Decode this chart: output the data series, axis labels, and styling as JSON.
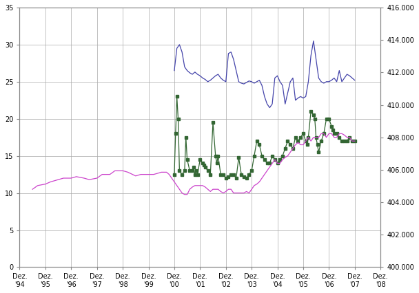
{
  "title": "",
  "xlim_start": 0,
  "xlim_end": 14,
  "ylim_left": [
    0,
    35
  ],
  "ylim_right": [
    400000,
    416000
  ],
  "x_tick_labels": [
    "Dez.\n'94",
    "Dez.\n'95",
    "Dez.\n'96",
    "Dez.\n'97",
    "Dez.\n'98",
    "Dez.\n'99",
    "Dez.\n'00",
    "Dez.\n'01",
    "Dez.\n'02",
    "Dez.\n'03",
    "Dez.\n'04",
    "Dez.\n'05",
    "Dez.\n'06",
    "Dez.\n'07",
    "Dez.\n'08"
  ],
  "y_left_ticks": [
    0,
    5,
    10,
    15,
    20,
    25,
    30,
    35
  ],
  "y_right_ticks": [
    400000,
    402000,
    404000,
    406000,
    408000,
    410000,
    412000,
    414000,
    416000
  ],
  "y_right_labels": [
    "400.000",
    "402.000",
    "404.000",
    "406.000",
    "408.000",
    "410.000",
    "412.000",
    "414.000",
    "416.000"
  ],
  "background_color": "#ffffff",
  "grid_color": "#aaaaaa",
  "colors": {
    "blue": "#4444aa",
    "green": "#336633",
    "magenta": "#cc44cc"
  },
  "blue_line": {
    "x": [
      6.0,
      6.1,
      6.2,
      6.3,
      6.35,
      6.4,
      6.5,
      6.6,
      6.7,
      6.8,
      6.9,
      7.0,
      7.1,
      7.2,
      7.3,
      7.4,
      7.5,
      7.6,
      7.7,
      7.8,
      7.9,
      8.0,
      8.1,
      8.2,
      8.3,
      8.4,
      8.5,
      8.6,
      8.7,
      8.8,
      8.9,
      9.0,
      9.1,
      9.2,
      9.3,
      9.4,
      9.5,
      9.6,
      9.7,
      9.8,
      9.9,
      10.0,
      10.1,
      10.2,
      10.3,
      10.4,
      10.5,
      10.6,
      10.7,
      10.8,
      10.9,
      11.0,
      11.1,
      11.2,
      11.3,
      11.4,
      11.5,
      11.6,
      11.7,
      11.8,
      11.9,
      12.0,
      12.1,
      12.2,
      12.3,
      12.4,
      12.5,
      12.6,
      12.7,
      12.8,
      12.9,
      13.0
    ],
    "y": [
      26.5,
      29.5,
      30.0,
      29.0,
      28.0,
      27.0,
      26.5,
      26.2,
      26.0,
      26.3,
      26.0,
      25.8,
      25.5,
      25.3,
      25.0,
      25.2,
      25.5,
      25.8,
      26.0,
      25.5,
      25.2,
      25.0,
      28.8,
      29.0,
      28.0,
      26.5,
      25.0,
      24.8,
      24.7,
      24.9,
      25.1,
      25.0,
      24.8,
      25.0,
      25.2,
      24.5,
      23.0,
      22.0,
      21.5,
      22.0,
      25.5,
      25.8,
      25.0,
      24.5,
      22.0,
      23.5,
      25.0,
      25.5,
      22.5,
      22.8,
      23.0,
      22.8,
      23.0,
      25.0,
      28.5,
      30.5,
      28.0,
      25.5,
      25.0,
      24.8,
      25.0,
      25.0,
      25.2,
      25.5,
      25.0,
      26.5,
      25.0,
      25.5,
      26.0,
      25.8,
      25.5,
      25.2
    ]
  },
  "green_line": {
    "x": [
      6.0,
      6.05,
      6.1,
      6.15,
      6.2,
      6.3,
      6.4,
      6.45,
      6.5,
      6.6,
      6.7,
      6.75,
      6.8,
      6.85,
      6.9,
      7.0,
      7.1,
      7.15,
      7.2,
      7.3,
      7.4,
      7.5,
      7.6,
      7.65,
      7.7,
      7.8,
      7.9,
      8.0,
      8.1,
      8.2,
      8.3,
      8.4,
      8.5,
      8.6,
      8.7,
      8.8,
      8.9,
      9.0,
      9.1,
      9.2,
      9.3,
      9.4,
      9.5,
      9.6,
      9.7,
      9.8,
      9.9,
      10.0,
      10.1,
      10.2,
      10.3,
      10.4,
      10.5,
      10.6,
      10.7,
      10.8,
      10.9,
      11.0,
      11.1,
      11.15,
      11.2,
      11.3,
      11.4,
      11.45,
      11.5,
      11.55,
      11.6,
      11.7,
      11.8,
      11.9,
      12.0,
      12.1,
      12.15,
      12.2,
      12.3,
      12.4,
      12.5,
      12.6,
      12.7,
      12.8,
      12.9,
      13.0
    ],
    "y": [
      12.5,
      18.0,
      23.0,
      20.0,
      13.0,
      12.5,
      13.0,
      17.5,
      14.5,
      13.0,
      13.0,
      13.5,
      12.5,
      13.0,
      12.5,
      14.5,
      14.0,
      13.8,
      13.5,
      13.0,
      12.5,
      19.5,
      15.0,
      14.0,
      15.0,
      12.5,
      12.5,
      12.0,
      12.2,
      12.5,
      12.5,
      12.0,
      14.8,
      12.5,
      12.2,
      12.0,
      12.5,
      13.0,
      15.0,
      17.0,
      16.5,
      15.0,
      14.5,
      14.0,
      14.0,
      15.0,
      14.5,
      14.0,
      14.5,
      15.0,
      16.0,
      17.0,
      16.5,
      16.0,
      17.5,
      17.0,
      17.5,
      18.0,
      17.0,
      16.5,
      17.5,
      21.0,
      20.5,
      20.0,
      17.5,
      16.5,
      15.5,
      17.0,
      18.0,
      20.0,
      20.0,
      19.0,
      18.5,
      18.0,
      18.0,
      17.5,
      17.0,
      17.0,
      17.0,
      17.5,
      17.0,
      17.0
    ]
  },
  "magenta_line": {
    "x": [
      0.5,
      0.7,
      1.0,
      1.2,
      1.5,
      1.7,
      2.0,
      2.2,
      2.5,
      2.7,
      3.0,
      3.2,
      3.5,
      3.7,
      4.0,
      4.2,
      4.5,
      4.7,
      5.0,
      5.2,
      5.5,
      5.7,
      5.8,
      5.9,
      6.0,
      6.1,
      6.2,
      6.3,
      6.4,
      6.5,
      6.6,
      6.7,
      6.8,
      6.9,
      7.0,
      7.1,
      7.2,
      7.3,
      7.4,
      7.5,
      7.6,
      7.7,
      7.8,
      7.9,
      8.0,
      8.1,
      8.2,
      8.3,
      8.4,
      8.5,
      8.6,
      8.7,
      8.8,
      8.9,
      9.0,
      9.1,
      9.2,
      9.3,
      9.4,
      9.5,
      9.6,
      9.7,
      9.8,
      9.9,
      10.0,
      10.1,
      10.2,
      10.3,
      10.4,
      10.5,
      10.6,
      10.7,
      10.8,
      10.9,
      11.0,
      11.1,
      11.2,
      11.3,
      11.4,
      11.5,
      11.6,
      11.7,
      11.8,
      11.9,
      12.0,
      12.1,
      12.2,
      12.3,
      12.4,
      12.5,
      12.6,
      12.7,
      12.8,
      12.9,
      13.0
    ],
    "y": [
      10.5,
      11.0,
      11.2,
      11.5,
      11.8,
      12.0,
      12.0,
      12.2,
      12.0,
      11.8,
      12.0,
      12.5,
      12.5,
      13.0,
      13.0,
      12.8,
      12.3,
      12.5,
      12.5,
      12.5,
      12.8,
      12.8,
      12.5,
      12.0,
      11.5,
      11.0,
      10.5,
      10.0,
      9.8,
      9.8,
      10.5,
      10.8,
      11.0,
      11.0,
      11.0,
      11.0,
      10.8,
      10.5,
      10.2,
      10.5,
      10.5,
      10.5,
      10.2,
      10.0,
      10.2,
      10.5,
      10.5,
      10.0,
      10.0,
      10.0,
      10.0,
      10.0,
      10.2,
      10.0,
      10.5,
      11.0,
      11.2,
      11.5,
      12.0,
      12.5,
      13.0,
      13.5,
      14.0,
      14.5,
      14.0,
      14.0,
      14.5,
      14.8,
      15.0,
      15.5,
      16.0,
      16.5,
      16.8,
      16.5,
      16.5,
      17.0,
      17.5,
      17.0,
      17.5,
      17.5,
      17.5,
      18.0,
      18.0,
      17.5,
      18.0,
      18.0,
      17.5,
      17.5,
      18.0,
      18.0,
      17.8,
      17.5,
      17.5,
      17.0,
      17.0
    ]
  }
}
